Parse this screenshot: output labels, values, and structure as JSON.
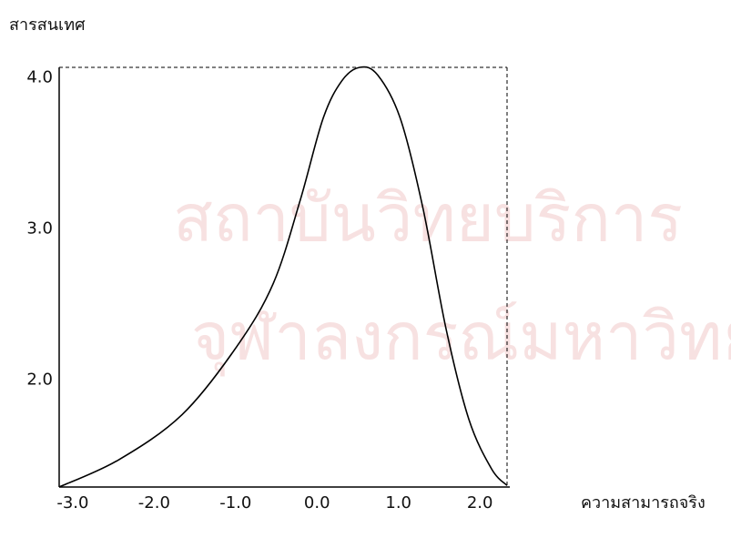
{
  "chart_data": {
    "type": "line",
    "xlabel": "ความสามารถจริง",
    "ylabel": "สารสนเทศ",
    "watermark": [
      "สถาบันวิทยบริการ",
      "จุฬาลงกรณ์มหาวิทยาลัย"
    ],
    "x": [
      -3.2,
      -2.47,
      -1.69,
      -1.02,
      -0.57,
      -0.24,
      0.04,
      0.27,
      0.49,
      0.71,
      0.99,
      1.27,
      1.55,
      1.83,
      2.11,
      2.3
    ],
    "series": [
      {
        "color": "#000000",
        "values": [
          1.29,
          1.47,
          1.77,
          2.22,
          2.64,
          3.19,
          3.73,
          3.98,
          4.07,
          4.02,
          3.73,
          3.13,
          2.34,
          1.74,
          1.41,
          1.3
        ]
      }
    ],
    "xlim": [
      -3.2,
      2.3
    ],
    "ylim": [
      1.29,
      4.07
    ],
    "xticks": [
      {
        "value": -3,
        "label": "-3.0"
      },
      {
        "value": -2,
        "label": "-2.0"
      },
      {
        "value": -1,
        "label": "-1.0"
      },
      {
        "value": 0,
        "label": "0.0"
      },
      {
        "value": 1,
        "label": "1.0"
      },
      {
        "value": 2,
        "label": "2.0"
      }
    ],
    "yticks": [
      {
        "value": 2,
        "label": "2.0"
      },
      {
        "value": 3,
        "label": "3.0"
      },
      {
        "value": 4,
        "label": "4.0"
      }
    ]
  }
}
